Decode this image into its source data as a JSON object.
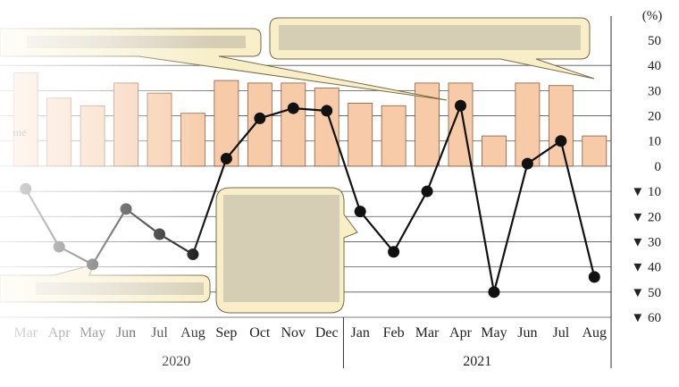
{
  "chart_data": {
    "type": "bar+line",
    "categories": [
      "Mar",
      "Apr",
      "May",
      "Jun",
      "Jul",
      "Aug",
      "Sep",
      "Oct",
      "Nov",
      "Dec",
      "Jan",
      "Feb",
      "Mar",
      "Apr",
      "May",
      "Jun",
      "Jul",
      "Aug"
    ],
    "years": [
      {
        "label": "2020",
        "from": 0,
        "to": 9
      },
      {
        "label": "2021",
        "from": 10,
        "to": 17
      }
    ],
    "unit": "(%)",
    "yticks": [
      {
        "value": 50,
        "label": "50"
      },
      {
        "value": 40,
        "label": "40"
      },
      {
        "value": 30,
        "label": "30"
      },
      {
        "value": 20,
        "label": "20"
      },
      {
        "value": 10,
        "label": "10"
      },
      {
        "value": 0,
        "label": "0"
      },
      {
        "value": -10,
        "label": "▼ 10"
      },
      {
        "value": -20,
        "label": "▼ 20"
      },
      {
        "value": -30,
        "label": "▼ 30"
      },
      {
        "value": -40,
        "label": "▼ 40"
      },
      {
        "value": -50,
        "label": "▼ 50"
      },
      {
        "value": -60,
        "label": "▼ 60"
      }
    ],
    "ylim": [
      -60,
      50
    ],
    "bars": [
      37,
      27,
      24,
      33,
      29,
      21,
      34,
      33,
      33,
      31,
      25,
      24,
      33,
      33,
      12,
      33,
      32,
      12
    ],
    "line": [
      -9,
      -32,
      -39,
      -17,
      -27,
      -35,
      3,
      19,
      23,
      22,
      -18,
      -34,
      -10,
      24,
      -50,
      1,
      10,
      -44
    ],
    "partial_label": "me",
    "grid": "horizontal",
    "colors": {
      "bar_fill": "#f7cba8",
      "bar_edge": "#8a5a3c",
      "line": "#111111",
      "callout_fill": "#f8eec8",
      "callout_edge": "#7a6a44"
    }
  }
}
